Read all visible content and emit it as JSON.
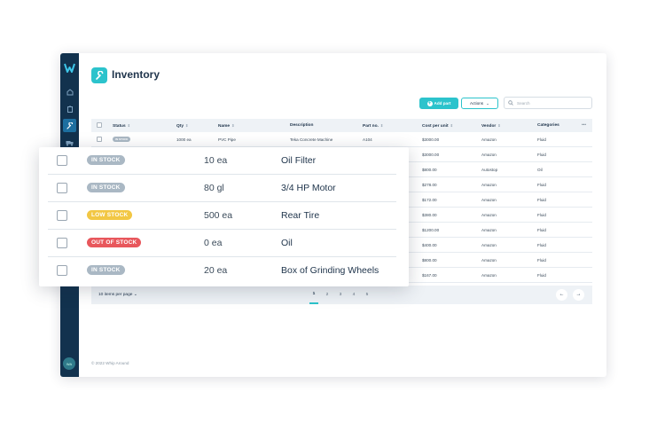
{
  "page": {
    "title": "Inventory",
    "title_icon": "wrench-icon",
    "copyright": "© 2022 Whip Around"
  },
  "sidebar": {
    "items": [
      {
        "icon": "dashboard-icon",
        "active": false
      },
      {
        "icon": "clipboard-icon",
        "active": false
      },
      {
        "icon": "wrench-icon",
        "active": true
      },
      {
        "icon": "truck-icon",
        "active": false
      }
    ],
    "avatar_text": "WA"
  },
  "toolbar": {
    "add_part_label": "Add part",
    "actions_label": "Actions",
    "search_placeholder": "Search"
  },
  "table": {
    "columns": [
      "Status",
      "Qty",
      "Name",
      "Description",
      "Part no.",
      "Cost per unit",
      "Vendor",
      "Categories"
    ],
    "rows": [
      {
        "status": "IN STOCK",
        "qty": "1000 ea",
        "name": "PVC Pipe",
        "description": "Teka Concrete Machine",
        "part_no": "A104",
        "cost": "$3000.00",
        "vendor": "Amazon",
        "category": "Fluid"
      },
      {
        "cost": "$3000.00",
        "vendor": "Amazon",
        "category": "Fluid"
      },
      {
        "cost": "$800.00",
        "vendor": "Autostop",
        "category": "Oil"
      },
      {
        "cost": "$278.00",
        "vendor": "Amazon",
        "category": "Fluid"
      },
      {
        "cost": "$172.00",
        "vendor": "Amazon",
        "category": "Fluid"
      },
      {
        "cost": "$380.00",
        "vendor": "Amazon",
        "category": "Fluid"
      },
      {
        "cost": "$1200.00",
        "vendor": "Amazon",
        "category": "Fluid"
      },
      {
        "cost": "$400.00",
        "vendor": "Amazon",
        "category": "Fluid"
      },
      {
        "cost": "$800.00",
        "vendor": "Amazon",
        "category": "Fluid"
      },
      {
        "cost": "$167.00",
        "vendor": "Amazon",
        "category": "Fluid"
      }
    ]
  },
  "pagination": {
    "per_page_label": "10 items per page",
    "pages": [
      "1",
      "2",
      "3",
      "4",
      "5"
    ],
    "current": "1",
    "prev": "←",
    "next": "→"
  },
  "zoom": {
    "rows": [
      {
        "status": "IN STOCK",
        "status_color": "#aab8c4",
        "qty": "10 ea",
        "name": "Oil Filter"
      },
      {
        "status": "IN STOCK",
        "status_color": "#aab8c4",
        "qty": "80 gl",
        "name": "3/4 HP Motor"
      },
      {
        "status": "LOW STOCK",
        "status_color": "#f2c744",
        "qty": "500 ea",
        "name": "Rear Tire"
      },
      {
        "status": "OUT OF STOCK",
        "status_color": "#e8575c",
        "qty": "0 ea",
        "name": "Oil"
      },
      {
        "status": "IN STOCK",
        "status_color": "#aab8c4",
        "qty": "20 ea",
        "name": "Box of Grinding Wheels"
      }
    ]
  },
  "colors": {
    "accent": "#2cc3cc",
    "sidebar": "#12324e",
    "text_dark": "#21364d"
  }
}
